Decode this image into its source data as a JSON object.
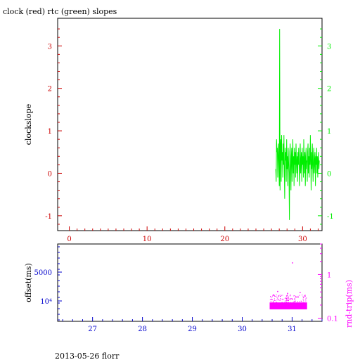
{
  "title": "clock (red) rtc (green) slopes",
  "footer": "2013-05-26 florr",
  "colors": {
    "clock": "#cc0000",
    "rtc": "#00ee00",
    "offset_axis": "#0000cc",
    "rndtrip": "#ff00ff",
    "frame": "#000000"
  },
  "chart_data": [
    {
      "type": "line",
      "title": "clock (red) rtc (green) slopes",
      "ylabel": "clockslope",
      "xlim": [
        -1.5,
        32.5
      ],
      "ylim": [
        -1.35,
        3.65
      ],
      "x_ticks": [
        0,
        10,
        20,
        30
      ],
      "x_tick_labels": [
        "0",
        "10",
        "20",
        "30"
      ],
      "y_ticks": [
        -1,
        0,
        1,
        2,
        3
      ],
      "y_tick_labels": [
        "-1",
        "0",
        "1",
        "2",
        "3"
      ],
      "grid": false,
      "series": [
        {
          "color": "#00ee00",
          "x": [
            26.55,
            26.6,
            26.65,
            26.7,
            26.75,
            26.8,
            26.85,
            26.9,
            26.95,
            27.0,
            27.05,
            27.1,
            27.15,
            27.2,
            27.25,
            27.3,
            27.35,
            27.4,
            27.45,
            27.5,
            27.55,
            27.6,
            27.65,
            27.7,
            27.75,
            27.8,
            27.85,
            27.9,
            27.95,
            28.0,
            28.05,
            28.1,
            28.15,
            28.2,
            28.25,
            28.3,
            28.35,
            28.4,
            28.45,
            28.5,
            28.55,
            28.6,
            28.65,
            28.7,
            28.75,
            28.8,
            28.85,
            28.9,
            28.95,
            29.0,
            29.05,
            29.1,
            29.15,
            29.2,
            29.25,
            29.3,
            29.35,
            29.4,
            29.45,
            29.5,
            29.55,
            29.6,
            29.65,
            29.7,
            29.75,
            29.8,
            29.85,
            29.9,
            29.95,
            30.0,
            30.05,
            30.1,
            30.15,
            30.2,
            30.25,
            30.3,
            30.35,
            30.4,
            30.45,
            30.5,
            30.55,
            30.6,
            30.65,
            30.7,
            30.75,
            30.8,
            30.85,
            30.9,
            30.95,
            31.0,
            31.05,
            31.1,
            31.15,
            31.2,
            31.25,
            31.3,
            31.35,
            31.4,
            31.45,
            31.5,
            31.55,
            31.6,
            31.65,
            31.7,
            31.75,
            31.8,
            31.85,
            31.9,
            31.95,
            32.0,
            32.05,
            32.1,
            32.15
          ],
          "values": [
            0.1,
            -0.2,
            0.8,
            0.5,
            0.6,
            -0.1,
            0.4,
            0.7,
            0.2,
            -0.3,
            3.4,
            -0.4,
            0.6,
            0.8,
            -0.2,
            0.9,
            0.3,
            0.5,
            -0.1,
            0.7,
            0.2,
            0.9,
            0.0,
            -0.6,
            0.6,
            0.3,
            0.5,
            -0.2,
            0.8,
            0.1,
            0.4,
            -0.3,
            0.6,
            0.3,
            0.0,
            -1.1,
            0.5,
            0.7,
            0.1,
            -0.4,
            0.4,
            0.6,
            -0.2,
            0.3,
            0.8,
            0.0,
            0.4,
            -0.3,
            0.6,
            0.2,
            0.5,
            -0.1,
            0.7,
            0.3,
            0.0,
            0.4,
            -0.2,
            0.5,
            0.2,
            0.6,
            0.1,
            -0.3,
            0.4,
            0.7,
            0.0,
            0.3,
            0.5,
            -0.2,
            0.6,
            0.2,
            0.4,
            -0.1,
            0.8,
            0.3,
            0.0,
            0.5,
            -0.3,
            0.4,
            0.6,
            0.1,
            0.3,
            -0.2,
            0.5,
            0.7,
            0.0,
            0.4,
            -0.1,
            0.6,
            0.2,
            0.9,
            0.3,
            -0.4,
            0.5,
            0.1,
            0.7,
            0.2,
            -0.2,
            0.4,
            0.6,
            0.0,
            0.3,
            0.5,
            -0.3,
            0.4,
            0.2,
            0.6,
            0.0,
            0.4,
            -0.1,
            0.3,
            0.5,
            0.1,
            0.3
          ]
        }
      ]
    },
    {
      "type": "scatter",
      "ylabel_left": "offset(ms)",
      "ylabel_right": "rnd-trip(ms)",
      "xlim": [
        26.3,
        31.6
      ],
      "x_ticks": [
        27,
        28,
        29,
        30,
        31
      ],
      "x_tick_labels": [
        "27",
        "28",
        "29",
        "30",
        "31"
      ],
      "y_left_tick_labels": [
        "5000",
        "10⁴"
      ],
      "y_right_tick_labels": [
        "1",
        "0.1"
      ],
      "grid": false,
      "series": [
        {
          "color": "#ff00ff",
          "x_range": [
            30.55,
            31.3
          ],
          "band_range": [
            0.16,
            0.23
          ],
          "outliers": [
            [
              31.0,
              1.9
            ],
            [
              30.7,
              0.42
            ],
            [
              31.15,
              0.4
            ],
            [
              30.9,
              0.38
            ],
            [
              30.62,
              0.35
            ],
            [
              31.25,
              0.33
            ]
          ]
        }
      ]
    }
  ]
}
